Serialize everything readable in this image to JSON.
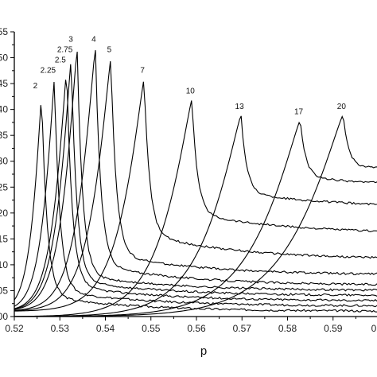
{
  "chart_data": {
    "type": "line",
    "title": "",
    "xlabel": "p",
    "ylabel": "",
    "xlim": [
      0.52,
      0.6
    ],
    "ylim": [
      0.0,
      0.55
    ],
    "grid": false,
    "legend": "none",
    "x_ticks": [
      "0.52",
      "0.53",
      "0.54",
      "0.55",
      "0.56",
      "0.57",
      "0.58",
      "0.59",
      "0"
    ],
    "y_ticks": [
      ".00",
      ".05",
      ".10",
      ".15",
      ".20",
      ".25",
      ".30",
      ".35",
      ".40",
      ".45",
      ".50",
      ".55"
    ],
    "series": [
      {
        "name": "2",
        "x": [
          0.52,
          0.524,
          0.526,
          0.528,
          0.54,
          0.56,
          0.6
        ],
        "y": [
          0.01,
          0.1,
          0.43,
          0.1,
          0.04,
          0.02,
          0.01
        ]
      },
      {
        "name": "2.25",
        "x": [
          0.52,
          0.526,
          0.5288,
          0.531,
          0.54,
          0.56,
          0.6
        ],
        "y": [
          0.01,
          0.1,
          0.46,
          0.11,
          0.05,
          0.03,
          0.02
        ]
      },
      {
        "name": "2.5",
        "x": [
          0.52,
          0.529,
          0.5315,
          0.533,
          0.54,
          0.56,
          0.6
        ],
        "y": [
          0.01,
          0.12,
          0.48,
          0.12,
          0.06,
          0.04,
          0.03
        ]
      },
      {
        "name": "2.75",
        "x": [
          0.52,
          0.53,
          0.5325,
          0.534,
          0.54,
          0.56,
          0.6
        ],
        "y": [
          0.01,
          0.14,
          0.5,
          0.13,
          0.07,
          0.05,
          0.04
        ]
      },
      {
        "name": "3",
        "x": [
          0.52,
          0.531,
          0.5338,
          0.536,
          0.54,
          0.56,
          0.6
        ],
        "y": [
          0.01,
          0.15,
          0.52,
          0.14,
          0.08,
          0.06,
          0.05
        ]
      },
      {
        "name": "4",
        "x": [
          0.52,
          0.535,
          0.5378,
          0.54,
          0.55,
          0.57,
          0.6
        ],
        "y": [
          0.01,
          0.16,
          0.52,
          0.16,
          0.1,
          0.08,
          0.06
        ]
      },
      {
        "name": "5",
        "x": [
          0.52,
          0.538,
          0.5412,
          0.544,
          0.55,
          0.57,
          0.6
        ],
        "y": [
          0.01,
          0.17,
          0.5,
          0.18,
          0.12,
          0.1,
          0.08
        ]
      },
      {
        "name": "7",
        "x": [
          0.52,
          0.545,
          0.5485,
          0.552,
          0.56,
          0.58,
          0.6
        ],
        "y": [
          0.01,
          0.18,
          0.46,
          0.21,
          0.16,
          0.13,
          0.11
        ]
      },
      {
        "name": "10",
        "x": [
          0.52,
          0.555,
          0.559,
          0.563,
          0.57,
          0.58,
          0.6
        ],
        "y": [
          0.0,
          0.19,
          0.42,
          0.25,
          0.2,
          0.18,
          0.16
        ]
      },
      {
        "name": "13",
        "x": [
          0.52,
          0.565,
          0.5698,
          0.574,
          0.58,
          0.59,
          0.6
        ],
        "y": [
          0.0,
          0.18,
          0.39,
          0.28,
          0.24,
          0.22,
          0.21
        ]
      },
      {
        "name": "17",
        "x": [
          0.52,
          0.578,
          0.5828,
          0.586,
          0.59,
          0.595,
          0.6
        ],
        "y": [
          0.0,
          0.16,
          0.38,
          0.3,
          0.27,
          0.26,
          0.25
        ]
      },
      {
        "name": "20",
        "x": [
          0.52,
          0.587,
          0.5922,
          0.595,
          0.598,
          0.6
        ],
        "y": [
          0.0,
          0.16,
          0.39,
          0.32,
          0.29,
          0.28
        ]
      }
    ]
  }
}
